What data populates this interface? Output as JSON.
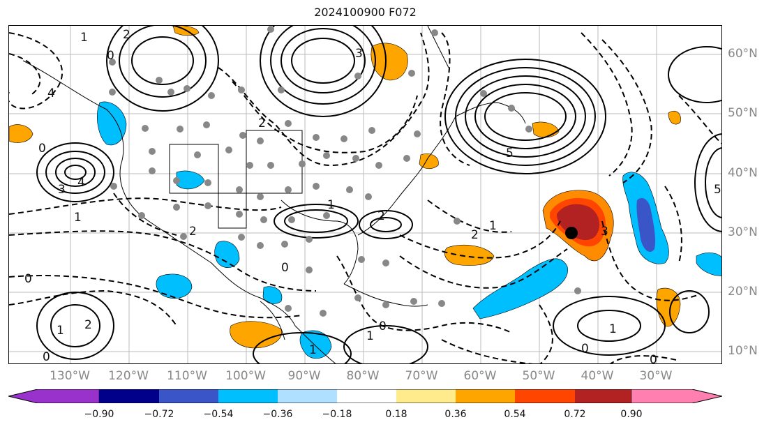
{
  "title": "2024100900 F072",
  "lon_labels": [
    "130°W",
    "120°W",
    "110°W",
    "100°W",
    "90°W",
    "80°W",
    "70°W",
    "60°W",
    "50°W",
    "40°W",
    "30°W"
  ],
  "lat_labels": [
    "60°N",
    "50°N",
    "40°N",
    "30°N",
    "20°N",
    "10°N"
  ],
  "colorbar": {
    "ticks": [
      "−0.90",
      "−0.72",
      "−0.54",
      "−0.36",
      "−0.18",
      "0.18",
      "0.36",
      "0.54",
      "0.72",
      "0.90"
    ],
    "colors": [
      "#9932cc",
      "#00008b",
      "#3a55c8",
      "#00bfff",
      "#b0e0ff",
      "#ffffff",
      "#ffeb8c",
      "#ffa500",
      "#ff4500",
      "#b22222",
      "#ff80b0"
    ]
  },
  "contour_labels": [
    {
      "text": "2",
      "kind": "pos"
    },
    {
      "text": "0",
      "kind": "neg"
    },
    {
      "text": "3",
      "kind": "pos"
    },
    {
      "text": "4",
      "kind": "pos"
    },
    {
      "text": "1",
      "kind": "pos"
    },
    {
      "text": "2",
      "kind": "neg"
    },
    {
      "text": "1",
      "kind": "pos"
    },
    {
      "text": "2",
      "kind": "pos"
    },
    {
      "text": "5",
      "kind": "pos"
    },
    {
      "text": "3",
      "kind": "pos"
    },
    {
      "text": "2",
      "kind": "neg"
    },
    {
      "text": "0",
      "kind": "neg"
    },
    {
      "text": "2",
      "kind": "neg"
    },
    {
      "text": "1",
      "kind": "neg"
    },
    {
      "text": "3",
      "kind": "pos"
    },
    {
      "text": "1",
      "kind": "pos"
    },
    {
      "text": "0",
      "kind": "neg"
    },
    {
      "text": "0",
      "kind": "neg"
    },
    {
      "text": "1",
      "kind": "pos"
    },
    {
      "text": "2",
      "kind": "pos"
    },
    {
      "text": "0",
      "kind": "neg"
    },
    {
      "text": "1",
      "kind": "pos"
    },
    {
      "text": "1",
      "kind": "pos"
    },
    {
      "text": "0",
      "kind": "neg"
    },
    {
      "text": "0",
      "kind": "neg"
    },
    {
      "text": "1",
      "kind": "pos"
    },
    {
      "text": "0",
      "kind": "neg"
    },
    {
      "text": "5",
      "kind": "pos"
    },
    {
      "text": "4",
      "kind": "pos"
    }
  ],
  "marker": {
    "label": "storm-center"
  }
}
